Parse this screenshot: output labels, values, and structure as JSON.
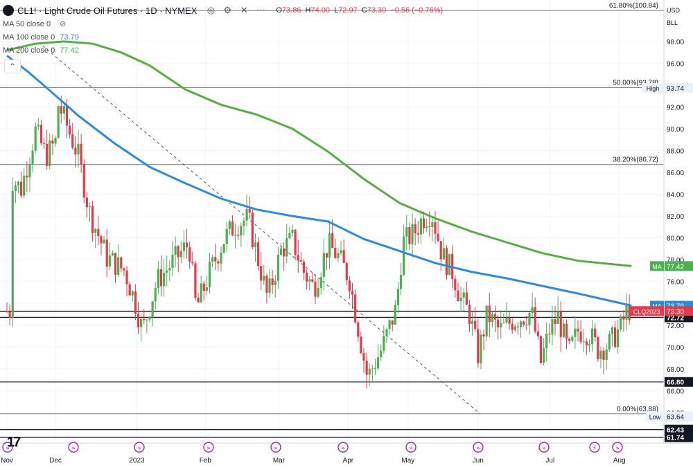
{
  "header": {
    "title": "CL1! · Light Crude Oil Futures · 1D · NYMEX",
    "ohlc": [
      {
        "label": "O",
        "value": "73.86"
      },
      {
        "label": "H",
        "value": "74.00"
      },
      {
        "label": "L",
        "value": "72.97"
      },
      {
        "label": "C",
        "value": "73.30"
      },
      {
        "label": "",
        "value": "−0.56 (−0.76%)"
      }
    ]
  },
  "indicators": [
    {
      "label": "MA 50 close 0",
      "value": "",
      "color": "#888888"
    },
    {
      "label": "MA 100 close 0",
      "value": "73.79",
      "color": "#2f8ad8"
    },
    {
      "label": "MA 200 close 0",
      "value": "77.42",
      "color": "#4caf50"
    }
  ],
  "currency_selector": {
    "currency": "USD",
    "unit": "BLL"
  },
  "colors": {
    "up": "#4caf50",
    "down": "#e23b4b",
    "ma100": "#2f8ad8",
    "ma200": "#56ad44",
    "grid": "#f0f3fa"
  },
  "chart_data": {
    "type": "candlestick",
    "ylim": [
      61.2,
      101.8
    ],
    "y_ticks": [
      64,
      66,
      68,
      70,
      72,
      74,
      76,
      78,
      80,
      82,
      84,
      86,
      88,
      90,
      92,
      94,
      96,
      98
    ],
    "x_labels": [
      "Nov",
      "Dec",
      "2023",
      "Feb",
      "Mar",
      "Apr",
      "May",
      "Jun",
      "Jul",
      "Aug"
    ],
    "x_label_days": [
      0,
      68,
      182,
      278,
      381,
      478,
      562,
      660,
      761,
      858
    ],
    "fib_levels": [
      {
        "label": "61.80%(100.84)",
        "value": 100.84
      },
      {
        "label": "50.00%(93.78)",
        "value": 93.78
      },
      {
        "label": "38.20%(86.72)",
        "value": 86.72
      },
      {
        "label": "0.00%(63.88)",
        "value": 63.88
      }
    ],
    "support_lines": [
      {
        "label": "73.28",
        "value": 73.28
      },
      {
        "label": "72.72",
        "value": 72.72
      },
      {
        "label": "66.80",
        "value": 66.8
      },
      {
        "label": "62.43",
        "value": 62.43
      },
      {
        "label": "61.74",
        "value": 61.74
      }
    ],
    "badges": [
      {
        "label": "High",
        "value": "93.74",
        "y": 93.74,
        "bg": "#eaf1fb",
        "fg": "#131722"
      },
      {
        "label": "Low",
        "value": "63.64",
        "y": 63.64,
        "bg": "#eaf1fb",
        "fg": "#131722"
      },
      {
        "label": "MA",
        "value": "77.42",
        "y": 77.42,
        "bg": "#4caf50",
        "fg": "#ffffff"
      },
      {
        "label": "MA",
        "value": "73.79",
        "y": 73.79,
        "bg": "#2f8ad8",
        "fg": "#ffffff"
      },
      {
        "label": "CLQ2023",
        "value": "73.30",
        "y": 73.3,
        "bg": "#e23b4b",
        "fg": "#ffffff"
      }
    ],
    "trendline": {
      "from": [
        50,
        97.6
      ],
      "to": [
        663,
        63.88
      ]
    },
    "ma200": [
      [
        0,
        97.2
      ],
      [
        40,
        97.8
      ],
      [
        80,
        98.0
      ],
      [
        120,
        97.8
      ],
      [
        160,
        97.0
      ],
      [
        200,
        95.8
      ],
      [
        250,
        93.6
      ],
      [
        300,
        92.2
      ],
      [
        350,
        91.3
      ],
      [
        400,
        90.0
      ],
      [
        450,
        87.9
      ],
      [
        500,
        85.4
      ],
      [
        550,
        83.2
      ],
      [
        600,
        81.8
      ],
      [
        650,
        80.6
      ],
      [
        700,
        79.6
      ],
      [
        750,
        78.6
      ],
      [
        800,
        77.9
      ],
      [
        875,
        77.42
      ]
    ],
    "ma100": [
      [
        0,
        96.7
      ],
      [
        30,
        95.2
      ],
      [
        60,
        93.5
      ],
      [
        100,
        91.2
      ],
      [
        150,
        88.7
      ],
      [
        200,
        86.5
      ],
      [
        250,
        85.0
      ],
      [
        300,
        83.6
      ],
      [
        350,
        82.6
      ],
      [
        400,
        82.0
      ],
      [
        450,
        81.5
      ],
      [
        500,
        79.9
      ],
      [
        550,
        78.8
      ],
      [
        600,
        77.7
      ],
      [
        650,
        76.9
      ],
      [
        700,
        76.3
      ],
      [
        750,
        75.6
      ],
      [
        800,
        74.9
      ],
      [
        875,
        73.79
      ]
    ],
    "candle_anchors": [
      [
        5,
        85.5
      ],
      [
        20,
        84.5
      ],
      [
        40,
        89.8
      ],
      [
        55,
        87.5
      ],
      [
        68,
        88.8
      ],
      [
        72,
        92.2
      ],
      [
        80,
        91.0
      ],
      [
        100,
        87.5
      ],
      [
        115,
        82.5
      ],
      [
        140,
        78.2
      ],
      [
        165,
        77.0
      ],
      [
        180,
        74.0
      ],
      [
        190,
        71.5
      ],
      [
        210,
        76.0
      ],
      [
        235,
        78.0
      ],
      [
        255,
        79.5
      ],
      [
        265,
        73.5
      ],
      [
        285,
        77.0
      ],
      [
        305,
        80.0
      ],
      [
        320,
        81.2
      ],
      [
        338,
        81.8
      ],
      [
        350,
        78.5
      ],
      [
        365,
        74.5
      ],
      [
        385,
        79.0
      ],
      [
        400,
        79.8
      ],
      [
        415,
        77.0
      ],
      [
        430,
        75.4
      ],
      [
        450,
        79.4
      ],
      [
        465,
        78.2
      ],
      [
        480,
        76.2
      ],
      [
        490,
        72.5
      ],
      [
        505,
        67.2
      ],
      [
        525,
        69.8
      ],
      [
        545,
        73.5
      ],
      [
        555,
        79.6
      ],
      [
        570,
        80.4
      ],
      [
        582,
        81.8
      ],
      [
        595,
        82.3
      ],
      [
        610,
        78.4
      ],
      [
        625,
        76.8
      ],
      [
        635,
        74.5
      ],
      [
        648,
        73.0
      ],
      [
        660,
        69.3
      ],
      [
        673,
        73.0
      ],
      [
        690,
        71.5
      ],
      [
        708,
        72.4
      ],
      [
        723,
        72.8
      ],
      [
        735,
        73.2
      ],
      [
        748,
        68.6
      ],
      [
        760,
        71.5
      ],
      [
        772,
        72.8
      ],
      [
        787,
        69.4
      ],
      [
        800,
        71.5
      ],
      [
        815,
        71.3
      ],
      [
        828,
        69.8
      ],
      [
        843,
        70.2
      ],
      [
        860,
        71.8
      ],
      [
        870,
        73.5
      ],
      [
        875,
        73.3
      ]
    ],
    "candle_x_step": 4.0,
    "candle_seed": 7
  }
}
